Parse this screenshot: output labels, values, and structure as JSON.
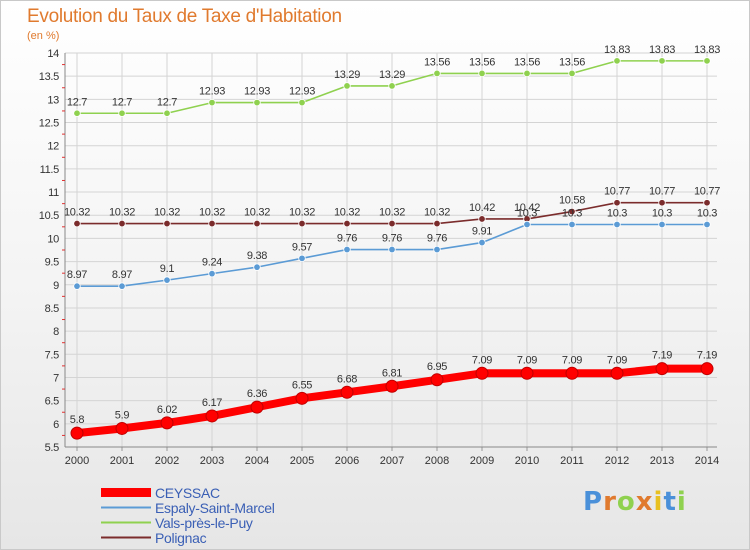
{
  "header": {
    "title": "Evolution du Taux de Taxe d'Habitation",
    "subtitle": "(en %)"
  },
  "colors": {
    "title": "#e07a2e",
    "axis_text": "#333333",
    "grid": "#d4d4d4",
    "legend_text": "#3a5fb5"
  },
  "logo": {
    "text": "Proxiti"
  },
  "chart_data": {
    "type": "line",
    "title": "Evolution du Taux de Taxe d'Habitation",
    "ylabel": "(en %)",
    "xlabel": "",
    "x": [
      "2000",
      "2001",
      "2002",
      "2003",
      "2004",
      "2005",
      "2006",
      "2007",
      "2008",
      "2009",
      "2010",
      "2011",
      "2012",
      "2013",
      "2014"
    ],
    "ylim": [
      5.5,
      14
    ],
    "yticks": [
      "5.5",
      "6",
      "6.5",
      "7",
      "7.5",
      "8",
      "8.5",
      "9",
      "9.5",
      "10",
      "10.5",
      "11",
      "11.5",
      "12",
      "12.5",
      "13",
      "13.5",
      "14"
    ],
    "grid": true,
    "legend_position": "bottom-left",
    "series": [
      {
        "name": "CEYSSAC",
        "color": "#ff0000",
        "labels": [
          "5.8",
          "5.9",
          "6.02",
          "6.17",
          "6.36",
          "6.55",
          "6.68",
          "6.81",
          "6.95",
          "7.09",
          "7.09",
          "7.09",
          "7.09",
          "7.19",
          "7.19"
        ],
        "values": [
          5.8,
          5.9,
          6.02,
          6.17,
          6.36,
          6.55,
          6.68,
          6.81,
          6.95,
          7.09,
          7.09,
          7.09,
          7.09,
          7.19,
          7.19
        ]
      },
      {
        "name": "Espaly-Saint-Marcel",
        "color": "#5b9bd5",
        "labels": [
          "8.97",
          "8.97",
          "9.1",
          "9.24",
          "9.38",
          "9.57",
          "9.76",
          "9.76",
          "9.76",
          "9.91",
          "10.3",
          "10.3",
          "10.3",
          "10.3",
          "10.3"
        ],
        "values": [
          8.97,
          8.97,
          9.1,
          9.24,
          9.38,
          9.57,
          9.76,
          9.76,
          9.76,
          9.91,
          10.3,
          10.3,
          10.3,
          10.3,
          10.3
        ]
      },
      {
        "name": "Vals-près-le-Puy",
        "color": "#8fd14f",
        "labels": [
          "12.7",
          "12.7",
          "12.7",
          "12.93",
          "12.93",
          "12.93",
          "13.29",
          "13.29",
          "13.56",
          "13.56",
          "13.56",
          "13.56",
          "13.83",
          "13.83",
          "13.83"
        ],
        "values": [
          12.7,
          12.7,
          12.7,
          12.93,
          12.93,
          12.93,
          13.29,
          13.29,
          13.56,
          13.56,
          13.56,
          13.56,
          13.83,
          13.83,
          13.83
        ]
      },
      {
        "name": "Polignac",
        "color": "#7b2c2c",
        "labels": [
          "10.32",
          "10.32",
          "10.32",
          "10.32",
          "10.32",
          "10.32",
          "10.32",
          "10.32",
          "10.32",
          "10.42",
          "10.42",
          "10.58",
          "10.77",
          "10.77",
          "10.77"
        ],
        "values": [
          10.32,
          10.32,
          10.32,
          10.32,
          10.32,
          10.32,
          10.32,
          10.32,
          10.32,
          10.42,
          10.42,
          10.58,
          10.77,
          10.77,
          10.77
        ]
      }
    ]
  }
}
